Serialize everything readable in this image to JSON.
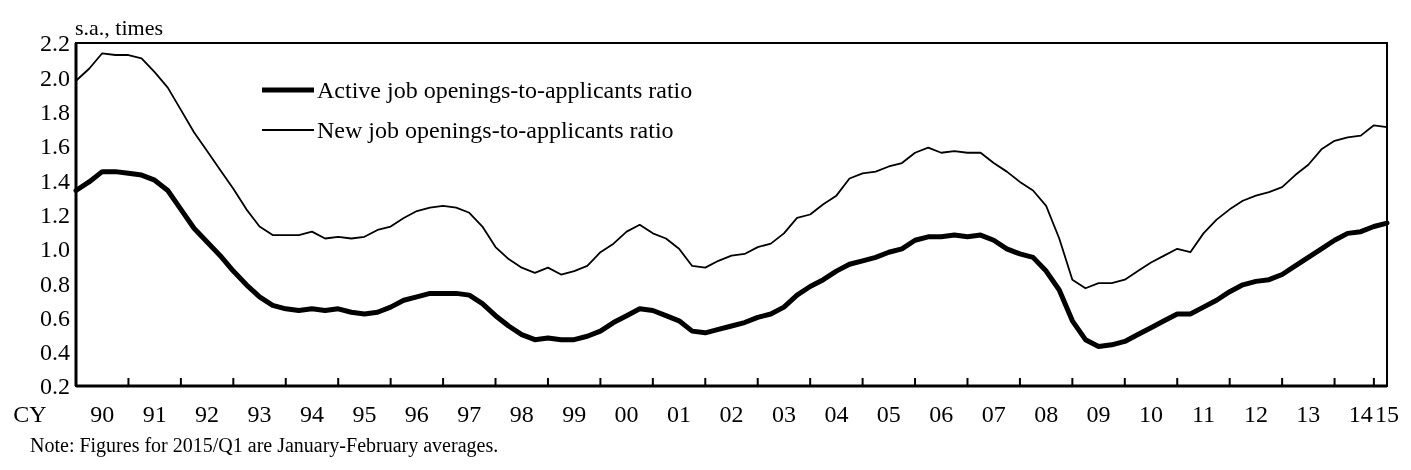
{
  "chart_data": {
    "type": "line",
    "ylabel": "s.a., times",
    "xlabel": "CY",
    "categories": [
      null,
      null,
      "90",
      null,
      null,
      null,
      "91",
      null,
      null,
      null,
      "92",
      null,
      null,
      null,
      "93",
      null,
      null,
      null,
      "94",
      null,
      null,
      null,
      "95",
      null,
      null,
      null,
      "96",
      null,
      null,
      null,
      "97",
      null,
      null,
      null,
      "98",
      null,
      null,
      null,
      "99",
      null,
      null,
      null,
      "00",
      null,
      null,
      null,
      "01",
      null,
      null,
      null,
      "02",
      null,
      null,
      null,
      "03",
      null,
      null,
      null,
      "04",
      null,
      null,
      null,
      "05",
      null,
      null,
      null,
      "06",
      null,
      null,
      null,
      "07",
      null,
      null,
      null,
      "08",
      null,
      null,
      null,
      "09",
      null,
      null,
      null,
      "10",
      null,
      null,
      null,
      "11",
      null,
      null,
      null,
      "12",
      null,
      null,
      null,
      "13",
      null,
      null,
      null,
      "14",
      null,
      "15"
    ],
    "series": [
      {
        "name": "Active job openings-to-applicants ratio",
        "color": "#000000",
        "values": [
          1.34,
          1.39,
          1.45,
          1.45,
          1.44,
          1.43,
          1.4,
          1.34,
          1.23,
          1.12,
          1.04,
          0.96,
          0.87,
          0.79,
          0.72,
          0.67,
          0.65,
          0.64,
          0.65,
          0.64,
          0.65,
          0.63,
          0.62,
          0.63,
          0.66,
          0.7,
          0.72,
          0.74,
          0.74,
          0.74,
          0.73,
          0.68,
          0.61,
          0.55,
          0.5,
          0.47,
          0.48,
          0.47,
          0.47,
          0.49,
          0.52,
          0.57,
          0.61,
          0.65,
          0.64,
          0.61,
          0.58,
          0.52,
          0.51,
          0.53,
          0.55,
          0.57,
          0.6,
          0.62,
          0.66,
          0.73,
          0.78,
          0.82,
          0.87,
          0.91,
          0.93,
          0.95,
          0.98,
          1.0,
          1.05,
          1.07,
          1.07,
          1.08,
          1.07,
          1.08,
          1.05,
          1.0,
          0.97,
          0.95,
          0.87,
          0.76,
          0.58,
          0.47,
          0.43,
          0.44,
          0.46,
          0.5,
          0.54,
          0.58,
          0.62,
          0.62,
          0.66,
          0.7,
          0.75,
          0.79,
          0.81,
          0.82,
          0.85,
          0.9,
          0.95,
          1.0,
          1.05,
          1.09,
          1.1,
          1.13,
          1.15
        ]
      },
      {
        "name": "New job openings-to-applicants ratio",
        "color": "#000000",
        "values": [
          1.98,
          2.05,
          2.14,
          2.13,
          2.13,
          2.11,
          2.03,
          1.94,
          1.81,
          1.68,
          1.57,
          1.46,
          1.35,
          1.23,
          1.13,
          1.08,
          1.08,
          1.08,
          1.1,
          1.06,
          1.07,
          1.06,
          1.07,
          1.11,
          1.13,
          1.18,
          1.22,
          1.24,
          1.25,
          1.24,
          1.21,
          1.13,
          1.01,
          0.94,
          0.89,
          0.86,
          0.89,
          0.85,
          0.87,
          0.9,
          0.98,
          1.03,
          1.1,
          1.14,
          1.09,
          1.06,
          1.0,
          0.9,
          0.89,
          0.93,
          0.96,
          0.97,
          1.01,
          1.03,
          1.09,
          1.18,
          1.2,
          1.26,
          1.31,
          1.41,
          1.44,
          1.45,
          1.48,
          1.5,
          1.56,
          1.59,
          1.56,
          1.57,
          1.56,
          1.56,
          1.5,
          1.45,
          1.39,
          1.34,
          1.25,
          1.06,
          0.82,
          0.77,
          0.8,
          0.8,
          0.82,
          0.87,
          0.92,
          0.96,
          1.0,
          0.98,
          1.09,
          1.17,
          1.23,
          1.28,
          1.31,
          1.33,
          1.36,
          1.43,
          1.49,
          1.58,
          1.63,
          1.65,
          1.66,
          1.72,
          1.71
        ]
      }
    ],
    "ylim": [
      0.2,
      2.2
    ],
    "yticks": [
      {
        "value": 0.2,
        "label": "0.2"
      },
      0.4,
      0.6,
      0.8,
      {
        "value": 1.0,
        "label": "1.0"
      },
      1.2,
      1.4,
      1.6,
      1.8,
      {
        "value": 2.0,
        "label": "2.0"
      },
      2.2
    ],
    "legend": "top left",
    "grid": false,
    "marker": "none",
    "line_style": "solid",
    "annotations": [
      "Note: Figures for 2015/Q1 are January-February averages."
    ]
  }
}
